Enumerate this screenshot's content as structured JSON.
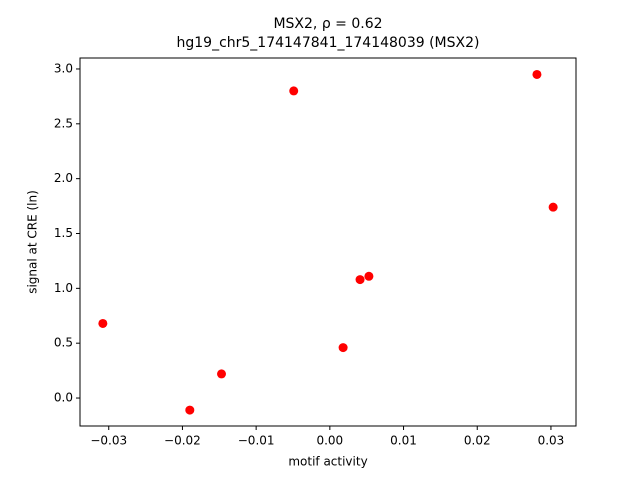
{
  "chart_data": {
    "type": "scatter",
    "title": "MSX2, ρ = 0.62",
    "subtitle": "hg19_chr5_174147841_174148039 (MSX2)",
    "x_label": "motif activity",
    "y_label": "signal at CRE (ln)",
    "series": [
      {
        "color": "#ff0000",
        "x": [
          -0.0308,
          -0.019,
          -0.0147,
          -0.0049,
          0.0018,
          0.0041,
          0.0053,
          0.0281,
          0.0303
        ],
        "values": [
          0.68,
          -0.11,
          0.22,
          2.8,
          0.46,
          1.08,
          1.11,
          2.95,
          1.74
        ]
      }
    ],
    "xlim": [
      -0.0339,
      0.0334
    ],
    "ylim": [
      -0.255,
      3.1
    ],
    "xticks": [
      {
        "value": -0.03,
        "label": "−0.03"
      },
      {
        "value": -0.02,
        "label": "−0.02"
      },
      {
        "value": -0.01,
        "label": "−0.01"
      },
      {
        "value": 0,
        "label": "0.00"
      },
      0.01,
      0.02,
      0.03
    ],
    "yticks": [
      {
        "value": 0,
        "label": "0.0"
      },
      0.5,
      {
        "value": 1,
        "label": "1.0"
      },
      1.5,
      {
        "value": 2,
        "label": "2.0"
      },
      2.5,
      {
        "value": 3,
        "label": "3.0"
      }
    ]
  }
}
